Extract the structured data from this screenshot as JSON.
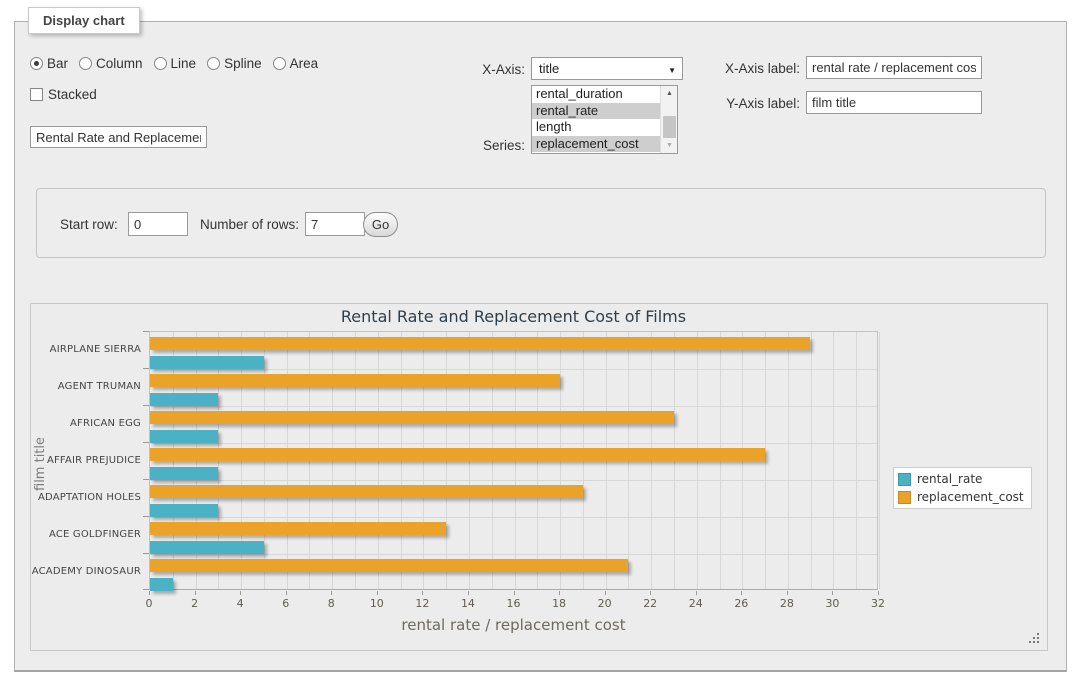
{
  "panel": {
    "legend_label": "Display chart"
  },
  "controls": {
    "chart_types": {
      "options": [
        "Bar",
        "Column",
        "Line",
        "Spline",
        "Area"
      ],
      "selected": "Bar"
    },
    "stacked": {
      "label": "Stacked",
      "checked": false
    },
    "chart_title_input": {
      "value": "Rental Rate and Replacement Cost of Films"
    },
    "x_axis_select": {
      "label": "X-Axis:",
      "selected_value": "title"
    },
    "series_listbox": {
      "label": "Series:",
      "options": [
        {
          "label": "rental_duration",
          "selected": false
        },
        {
          "label": "rental_rate",
          "selected": true
        },
        {
          "label": "length",
          "selected": false
        },
        {
          "label": "replacement_cost",
          "selected": true
        }
      ]
    },
    "x_axis_label_field": {
      "label": "X-Axis label:",
      "value": "rental rate / replacement cost"
    },
    "y_axis_label_field": {
      "label": "Y-Axis label:",
      "value": "film title"
    },
    "row_controls": {
      "start_row_label": "Start row:",
      "start_row_value": "0",
      "number_of_rows_label": "Number of rows:",
      "number_of_rows_value": "7",
      "go_button_label": "Go"
    }
  },
  "chart_data": {
    "type": "bar",
    "orientation": "horizontal",
    "title": "Rental Rate and Replacement Cost of Films",
    "xlabel": "rental rate / replacement cost",
    "ylabel": "film title",
    "categories": [
      "AIRPLANE SIERRA",
      "AGENT TRUMAN",
      "AFRICAN EGG",
      "AFFAIR PREJUDICE",
      "ADAPTATION HOLES",
      "ACE GOLDFINGER",
      "ACADEMY DINOSAUR"
    ],
    "series": [
      {
        "name": "rental_rate",
        "color": "#4bb2c5",
        "values": [
          4.99,
          2.99,
          2.99,
          2.99,
          2.99,
          4.99,
          0.99
        ]
      },
      {
        "name": "replacement_cost",
        "color": "#EAA228",
        "values": [
          28.99,
          17.99,
          22.99,
          26.99,
          18.99,
          12.99,
          20.99
        ]
      }
    ],
    "xlim": [
      0,
      32
    ],
    "x_tick_label_step": 2,
    "x_grid_step": 1,
    "grid": true,
    "legend_position": "right",
    "bar_order_in_group": [
      "replacement_cost",
      "rental_rate"
    ]
  }
}
